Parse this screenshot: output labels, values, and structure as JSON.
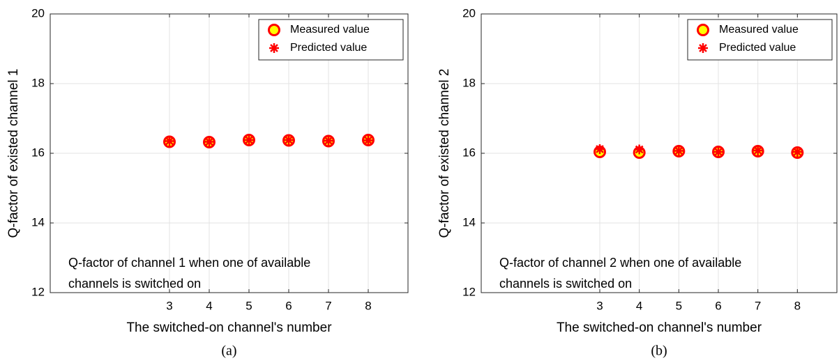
{
  "chart_data": [
    {
      "type": "scatter",
      "caption": "(a)",
      "xlabel": "The switched-on channel's number",
      "ylabel": "Q-factor of existed channel 1",
      "annotation_lines": [
        "Q-factor of channel 1 when one of available",
        "channels is switched on"
      ],
      "x": [
        3,
        4,
        5,
        6,
        7,
        8
      ],
      "series": [
        {
          "name": "Measured value",
          "color": "#ff0000",
          "fill": "#ffff00",
          "marker": "circle",
          "values": [
            16.33,
            16.32,
            16.38,
            16.37,
            16.35,
            16.38
          ]
        },
        {
          "name": "Predicted value",
          "color": "#ff0000",
          "marker": "asterisk",
          "values": [
            16.35,
            16.33,
            16.38,
            16.38,
            16.36,
            16.37
          ]
        }
      ],
      "xlim": [
        0,
        9
      ],
      "xticks": [
        3,
        4,
        5,
        6,
        7,
        8
      ],
      "ylim": [
        12,
        20
      ],
      "yticks": [
        12,
        14,
        16,
        18,
        20
      ],
      "grid": true,
      "legend": "northeast"
    },
    {
      "type": "scatter",
      "caption": "(b)",
      "xlabel": "The switched-on channel's number",
      "ylabel": "Q-factor of existed channel 2",
      "annotation_lines": [
        "Q-factor of channel 2 when one of available",
        "channels is switched on"
      ],
      "x": [
        3,
        4,
        5,
        6,
        7,
        8
      ],
      "series": [
        {
          "name": "Measured value",
          "color": "#ff0000",
          "fill": "#ffff00",
          "marker": "circle",
          "values": [
            16.04,
            16.02,
            16.06,
            16.04,
            16.06,
            16.02
          ]
        },
        {
          "name": "Predicted value",
          "color": "#ff0000",
          "marker": "asterisk",
          "values": [
            16.12,
            16.11,
            16.07,
            16.04,
            16.08,
            16.04
          ]
        }
      ],
      "xlim": [
        0,
        9
      ],
      "xticks": [
        3,
        4,
        5,
        6,
        7,
        8
      ],
      "ylim": [
        12,
        20
      ],
      "yticks": [
        12,
        14,
        16,
        18,
        20
      ],
      "grid": true,
      "legend": "northeast"
    }
  ]
}
